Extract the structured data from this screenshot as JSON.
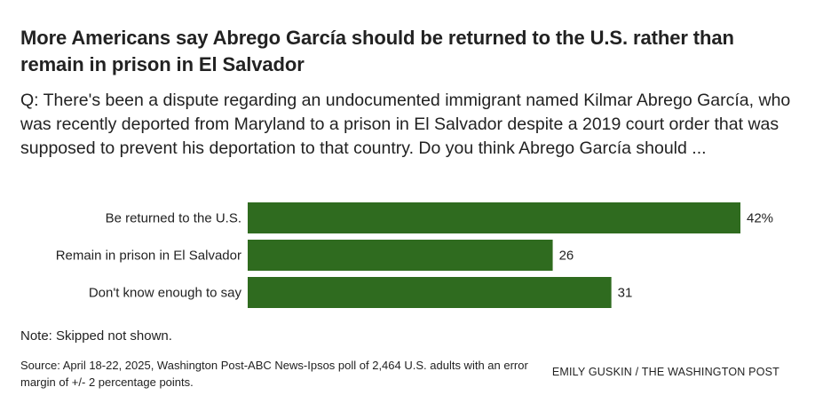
{
  "header": {
    "title": "More Americans say Abrego García should be returned to the U.S. rather than remain in prison in El Salvador",
    "question": "Q: There's been a dispute regarding an undocumented immigrant named Kilmar Abrego García, who was recently deported from Maryland to a prison in El Salvador despite a 2019 court order that was supposed to prevent his deportation to that country. Do you think Abrego García should ..."
  },
  "chart_data": {
    "type": "bar",
    "orientation": "horizontal",
    "categories": [
      "Be returned to the U.S.",
      "Remain in prison in El Salvador",
      "Don't know enough to say"
    ],
    "values": [
      42,
      26,
      31
    ],
    "value_labels": [
      "42%",
      "26",
      "31"
    ],
    "xlim": [
      0,
      42
    ],
    "bar_color": "#2f6b1f",
    "grid": false
  },
  "footer": {
    "note": "Note: Skipped not shown.",
    "source": "Source: April 18-22, 2025, Washington Post-ABC News-Ipsos poll of 2,464 U.S. adults with an error margin of +/- 2 percentage points.",
    "credit": "EMILY GUSKIN / THE WASHINGTON POST"
  }
}
